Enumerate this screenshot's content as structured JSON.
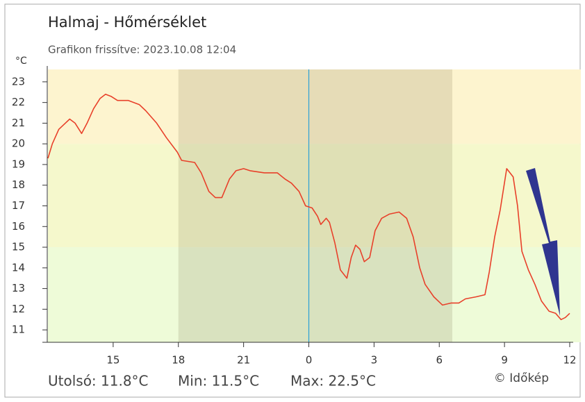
{
  "chart_data": {
    "type": "line",
    "title": "Halmaj - Hőmérséklet",
    "subtitle": "Grafikon frissítve: 2023.10.08 12:04",
    "y_unit": "°C",
    "stats": [
      "Utolsó: 11.8°C",
      "Min: 11.5°C",
      "Max: 22.5°C"
    ],
    "credit": "© Időkép",
    "xlim": [
      12,
      36
    ],
    "xticks": [
      15,
      18,
      21,
      {
        "value": 24,
        "label": "0"
      },
      {
        "value": 27,
        "label": "3"
      },
      {
        "value": 30,
        "label": "6"
      },
      {
        "value": 33,
        "label": "9"
      },
      {
        "value": 36,
        "label": "12"
      }
    ],
    "ylim": [
      10.4,
      23.6
    ],
    "yticks": [
      11,
      12,
      13,
      14,
      15,
      16,
      17,
      18,
      19,
      20,
      21,
      22,
      23
    ],
    "zone_thresholds": [
      15,
      20
    ],
    "zone_colors": [
      "#eefbd8",
      "#f5f8cc",
      "#fdf4cf"
    ],
    "night": [
      18,
      30.6
    ],
    "midnight": 24,
    "series": [
      {
        "name": "Hőmérséklet",
        "color": "#e8402a",
        "x": [
          12.0,
          12.2,
          12.5,
          12.8,
          13.0,
          13.25,
          13.55,
          13.8,
          14.1,
          14.4,
          14.65,
          14.9,
          15.2,
          15.7,
          16.2,
          16.5,
          17.0,
          17.45,
          17.95,
          18.15,
          18.75,
          19.05,
          19.4,
          19.7,
          20.0,
          20.35,
          20.65,
          21.0,
          21.3,
          21.95,
          22.55,
          22.9,
          23.2,
          23.55,
          23.85,
          24.15,
          24.4,
          24.55,
          24.8,
          24.95,
          25.2,
          25.45,
          25.75,
          25.95,
          26.15,
          26.35,
          26.55,
          26.8,
          27.05,
          27.35,
          27.7,
          28.15,
          28.5,
          28.8,
          29.1,
          29.35,
          29.75,
          30.15,
          30.55,
          30.9,
          31.2,
          31.7,
          32.1,
          32.3,
          32.55,
          32.8,
          33.1,
          33.4,
          33.6,
          33.8,
          34.1,
          34.4,
          34.7,
          35.05,
          35.35,
          35.6,
          35.8,
          36.0
        ],
        "values": [
          19.3,
          20.0,
          20.7,
          21.0,
          21.2,
          21.0,
          20.5,
          21.0,
          21.7,
          22.2,
          22.4,
          22.3,
          22.1,
          22.1,
          21.9,
          21.6,
          21.0,
          20.3,
          19.6,
          19.2,
          19.1,
          18.6,
          17.7,
          17.4,
          17.4,
          18.3,
          18.7,
          18.8,
          18.7,
          18.6,
          18.6,
          18.3,
          18.1,
          17.7,
          17.0,
          16.9,
          16.5,
          16.1,
          16.4,
          16.2,
          15.2,
          13.9,
          13.5,
          14.5,
          15.1,
          14.9,
          14.3,
          14.5,
          15.8,
          16.4,
          16.6,
          16.7,
          16.4,
          15.5,
          14.0,
          13.2,
          12.6,
          12.2,
          12.3,
          12.3,
          12.5,
          12.6,
          12.7,
          13.8,
          15.5,
          16.8,
          18.8,
          18.4,
          17.0,
          14.8,
          13.9,
          13.2,
          12.4,
          11.9,
          11.8,
          11.5,
          11.6,
          11.8
        ]
      }
    ]
  }
}
